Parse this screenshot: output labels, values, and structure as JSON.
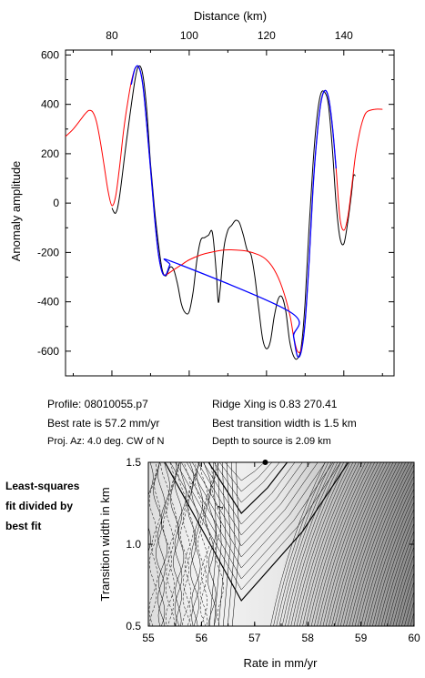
{
  "chart_data": [
    {
      "type": "line",
      "xlabel": "Distance (km)",
      "ylabel": "Anomaly amplitude",
      "xlim": [
        68,
        153
      ],
      "ylim": [
        -700,
        620
      ],
      "x_ticks": [
        80,
        100,
        120,
        140
      ],
      "y_ticks": [
        600,
        400,
        200,
        0,
        -200,
        -400,
        -600
      ],
      "series": [
        {
          "color": "#000000",
          "points": [
            [
              80,
              -20
            ],
            [
              81,
              -40
            ],
            [
              82,
              30
            ],
            [
              84,
              280
            ],
            [
              86,
              500
            ],
            [
              87,
              555
            ],
            [
              88,
              520
            ],
            [
              89,
              380
            ],
            [
              90,
              160
            ],
            [
              91,
              -20
            ],
            [
              92,
              -160
            ],
            [
              93,
              -270
            ],
            [
              94,
              -295
            ],
            [
              95,
              -260
            ],
            [
              96,
              -270
            ],
            [
              97,
              -330
            ],
            [
              98,
              -410
            ],
            [
              99,
              -445
            ],
            [
              100,
              -440
            ],
            [
              101,
              -360
            ],
            [
              102,
              -230
            ],
            [
              103,
              -150
            ],
            [
              104,
              -140
            ],
            [
              105,
              -130
            ],
            [
              106,
              -120
            ],
            [
              107,
              -280
            ],
            [
              107.5,
              -400
            ],
            [
              108,
              -350
            ],
            [
              109,
              -180
            ],
            [
              110,
              -110
            ],
            [
              111,
              -90
            ],
            [
              112,
              -70
            ],
            [
              113,
              -80
            ],
            [
              114,
              -130
            ],
            [
              115,
              -190
            ],
            [
              116,
              -210
            ],
            [
              117,
              -300
            ],
            [
              118,
              -430
            ],
            [
              119,
              -550
            ],
            [
              120,
              -590
            ],
            [
              121,
              -560
            ],
            [
              122,
              -460
            ],
            [
              123,
              -390
            ],
            [
              124,
              -380
            ],
            [
              125,
              -440
            ],
            [
              126,
              -560
            ],
            [
              127,
              -620
            ],
            [
              128,
              -630
            ],
            [
              129,
              -580
            ],
            [
              130,
              -400
            ],
            [
              131,
              -100
            ],
            [
              132,
              150
            ],
            [
              133,
              340
            ],
            [
              134,
              440
            ],
            [
              135,
              450
            ],
            [
              136,
              400
            ],
            [
              137,
              230
            ],
            [
              138,
              0
            ],
            [
              139,
              -140
            ],
            [
              140,
              -165
            ],
            [
              141,
              -80
            ],
            [
              142,
              40
            ],
            [
              142.5,
              110
            ],
            [
              143,
              110
            ]
          ]
        },
        {
          "color": "#ff0000",
          "points": [
            [
              68,
              270
            ],
            [
              70,
              300
            ],
            [
              72,
              340
            ],
            [
              73,
              360
            ],
            [
              74,
              375
            ],
            [
              75,
              370
            ],
            [
              76,
              330
            ],
            [
              77,
              250
            ],
            [
              78,
              150
            ],
            [
              79,
              50
            ],
            [
              80,
              -10
            ],
            [
              81,
              30
            ],
            [
              82,
              150
            ],
            [
              83,
              290
            ],
            [
              84,
              400
            ],
            [
              85,
              490
            ],
            [
              86,
              545
            ],
            [
              87,
              550
            ],
            [
              88,
              480
            ],
            [
              89,
              320
            ],
            [
              90,
              140
            ],
            [
              91,
              -50
            ],
            [
              92,
              -200
            ],
            [
              93,
              -280
            ],
            [
              94,
              -290
            ],
            [
              96,
              -270
            ],
            [
              98,
              -250
            ],
            [
              100,
              -230
            ],
            [
              103,
              -210
            ],
            [
              106,
              -198
            ],
            [
              109,
              -190
            ],
            [
              112,
              -190
            ],
            [
              115,
              -195
            ],
            [
              118,
              -210
            ],
            [
              120,
              -230
            ],
            [
              122,
              -270
            ],
            [
              124,
              -340
            ],
            [
              126,
              -450
            ],
            [
              127,
              -540
            ],
            [
              128,
              -600
            ],
            [
              129,
              -590
            ],
            [
              130,
              -480
            ],
            [
              131,
              -240
            ],
            [
              132,
              50
            ],
            [
              133,
              260
            ],
            [
              134,
              400
            ],
            [
              135,
              455
            ],
            [
              136,
              430
            ],
            [
              137,
              320
            ],
            [
              138,
              140
            ],
            [
              139,
              -60
            ],
            [
              140,
              -110
            ],
            [
              141,
              -60
            ],
            [
              142,
              60
            ],
            [
              143,
              190
            ],
            [
              144,
              280
            ],
            [
              145,
              340
            ],
            [
              146,
              370
            ],
            [
              148,
              380
            ],
            [
              150,
              380
            ]
          ]
        },
        {
          "color": "#0000ff",
          "points": [
            [
              85,
              480
            ],
            [
              86,
              545
            ],
            [
              87,
              550
            ],
            [
              88,
              480
            ],
            [
              89,
              320
            ],
            [
              90,
              140
            ],
            [
              91,
              -50
            ],
            [
              92,
              -200
            ],
            [
              93,
              -280
            ],
            [
              94,
              -290
            ],
            [
              95,
              -250
            ],
            [
              96,
              -240
            ],
            [
              126,
              -440
            ],
            [
              127,
              -540
            ],
            [
              128,
              -620
            ],
            [
              129,
              -600
            ],
            [
              130,
              -480
            ],
            [
              131,
              -240
            ],
            [
              132,
              50
            ],
            [
              133,
              260
            ],
            [
              134,
              400
            ],
            [
              135,
              455
            ],
            [
              136,
              430
            ],
            [
              137,
              320
            ],
            [
              138,
              140
            ]
          ]
        }
      ]
    },
    {
      "type": "heatmap",
      "subtype": "contour",
      "xlabel": "Rate in mm/yr",
      "ylabel": "Transition width in km",
      "xlim": [
        55,
        60
      ],
      "ylim": [
        0.5,
        1.5
      ],
      "x_ticks": [
        "55",
        "56",
        "57",
        "58",
        "59",
        "60"
      ],
      "y_ticks": [
        "0.5",
        "1.0",
        "1.5"
      ],
      "best_fit": {
        "x": 57.2,
        "y": 1.5
      },
      "min_label": "1"
    }
  ],
  "info": {
    "profile": "Profile: 08010055.p7",
    "best_rate": "Best rate is 57.2 mm/yr",
    "proj_az": "Proj. Az: 4.0 deg. CW of N",
    "ridge_xing": "Ridge Xing is 0.83 270.41",
    "best_width": "Best transition width is 1.5 km",
    "depth": "Depth to source is   2.09 km"
  },
  "side_note": [
    "Least-squares",
    "fit divided by",
    "best fit"
  ]
}
